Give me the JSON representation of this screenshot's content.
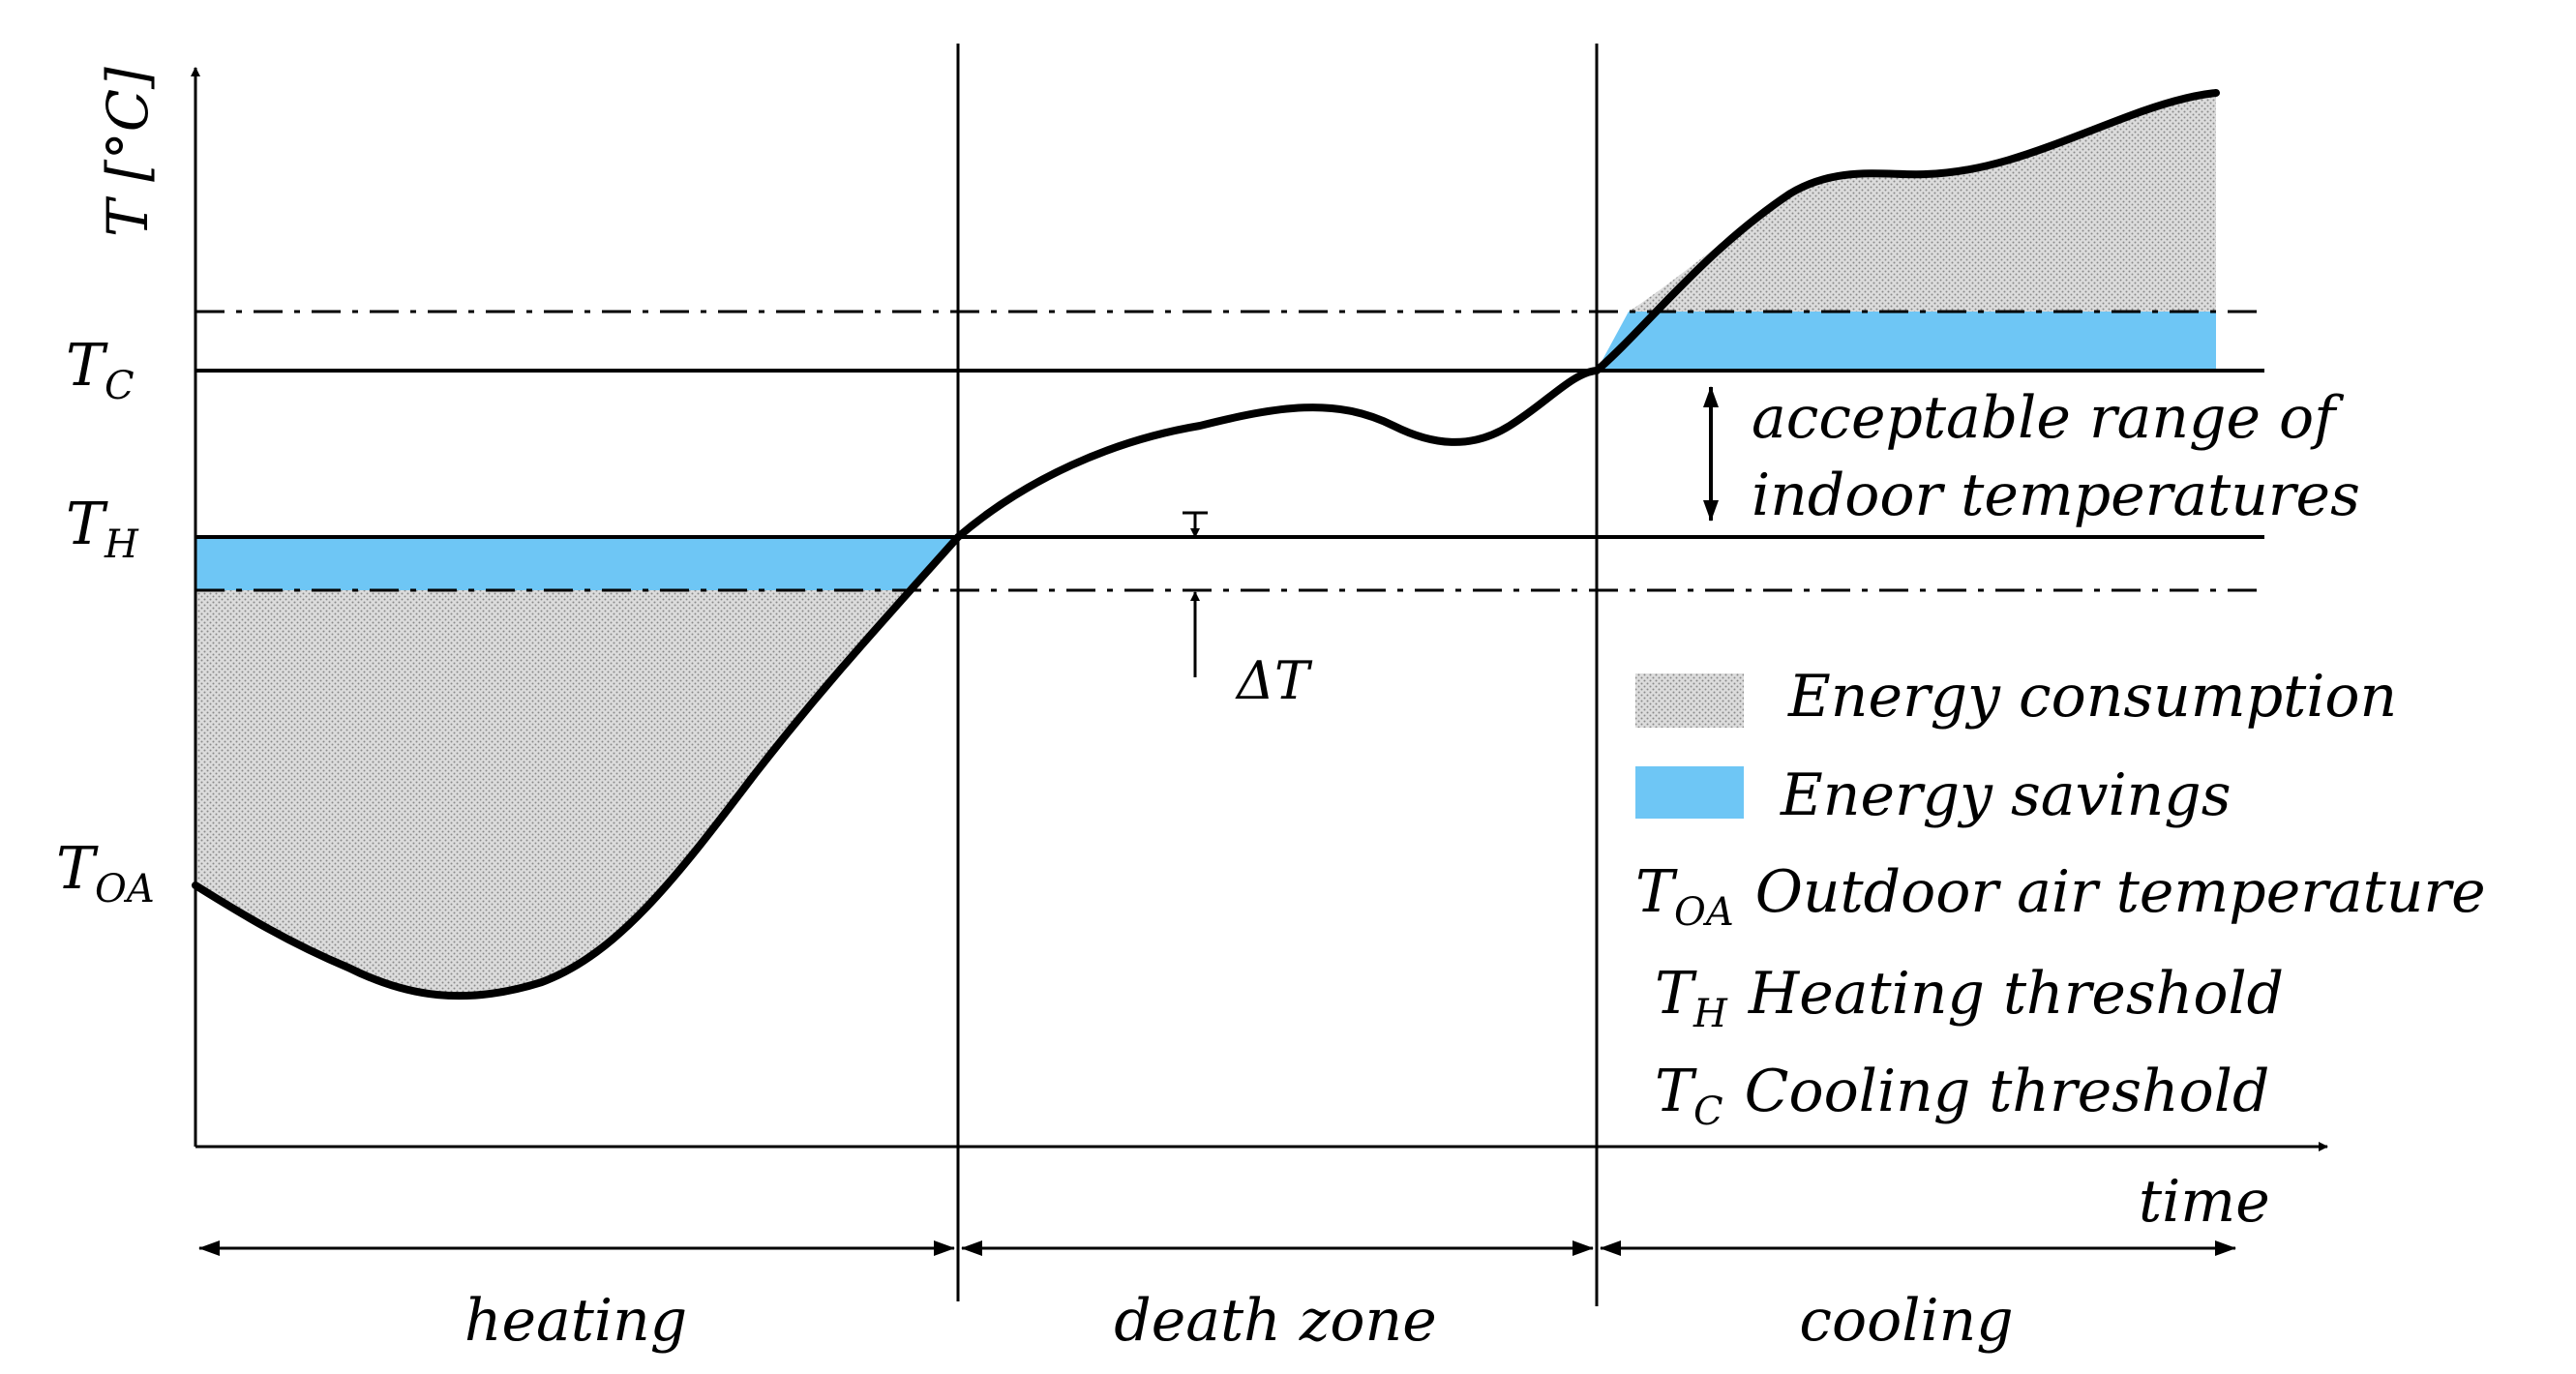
{
  "y_axis": {
    "symbol": "T",
    "unit": "[°C]"
  },
  "x_axis": {
    "label": "time"
  },
  "labels": {
    "t_c": {
      "base": "T",
      "sub": "C"
    },
    "t_h": {
      "base": "T",
      "sub": "H"
    },
    "t_oa": {
      "base": "T",
      "sub": "OA"
    },
    "delta_t": "ΔT",
    "acceptable_range_line1": "acceptable range of",
    "acceptable_range_line2": "indoor temperatures"
  },
  "zones": {
    "heating": "heating",
    "dead": "death zone",
    "cooling": "cooling"
  },
  "legend": {
    "consumption": "Energy consumption",
    "savings": "Energy savings",
    "t_oa_base": "T",
    "t_oa_sub": "OA",
    "t_oa_desc": "Outdoor air temperature",
    "t_h_base": "T",
    "t_h_sub": "H",
    "t_h_desc": "Heating threshold",
    "t_c_base": "T",
    "t_c_sub": "C",
    "t_c_desc": "Cooling threshold"
  },
  "colors": {
    "savings": "#6ec6f5",
    "consumption_bg": "#dcdcdc",
    "consumption_dot": "#8a8a8a",
    "line": "#000000"
  }
}
